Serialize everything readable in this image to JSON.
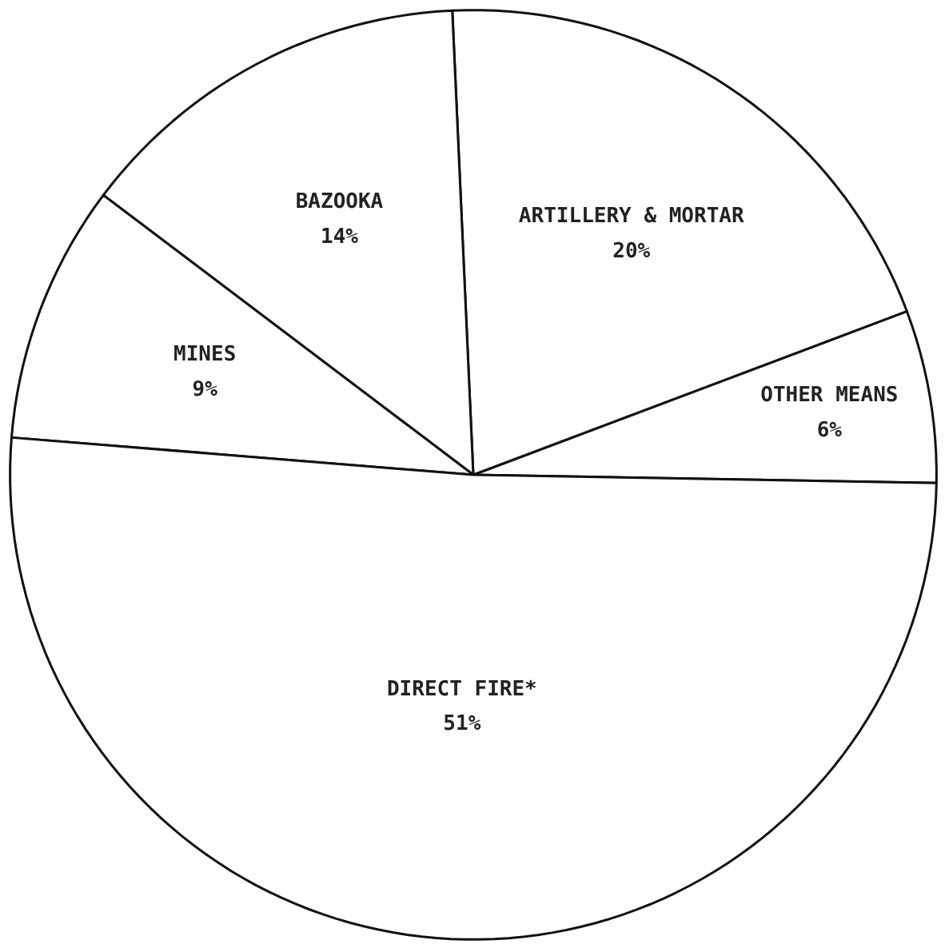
{
  "chart_data": {
    "type": "pie",
    "categories": [
      "OTHER MEANS",
      "ARTILLERY & MORTAR",
      "BAZOOKA",
      "MINES",
      "DIRECT FIRE*"
    ],
    "values": [
      6,
      20,
      14,
      9,
      51
    ],
    "value_labels": [
      "6%",
      "20%",
      "14%",
      "9%",
      "51%"
    ],
    "colors": [
      "#ffffff",
      "#ffffff",
      "#ffffff",
      "#ffffff",
      "#ffffff"
    ]
  }
}
